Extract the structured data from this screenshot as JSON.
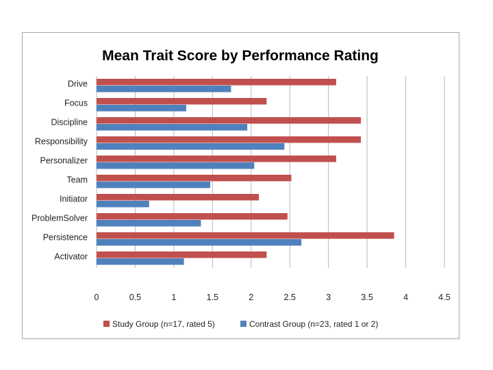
{
  "chart_data": {
    "type": "bar",
    "orientation": "horizontal",
    "title": "Mean Trait Score by Performance Rating",
    "categories": [
      "Drive",
      "Focus",
      "Discipline",
      "Responsibility",
      "Personalizer",
      "Team",
      "Initiator",
      "ProblemSolver",
      "Persistence",
      "Activator"
    ],
    "series": [
      {
        "name": "Study Group (n=17,  rated 5)",
        "color": "#c0504d",
        "values": [
          3.1,
          2.2,
          3.42,
          3.42,
          3.1,
          2.52,
          2.1,
          2.47,
          3.85,
          2.2
        ]
      },
      {
        "name": "Contrast Group (n=23, rated 1 or 2)",
        "color": "#4f81bd",
        "values": [
          1.74,
          1.16,
          1.95,
          2.43,
          2.04,
          1.47,
          0.68,
          1.35,
          2.65,
          1.13
        ]
      }
    ],
    "xlim": [
      0,
      4.5
    ],
    "xticks": [
      "0",
      "0.5",
      "1",
      "1.5",
      "2",
      "2.5",
      "3",
      "3.5",
      "4",
      "4.5"
    ],
    "grid": "vertical",
    "legend": "bottom"
  }
}
